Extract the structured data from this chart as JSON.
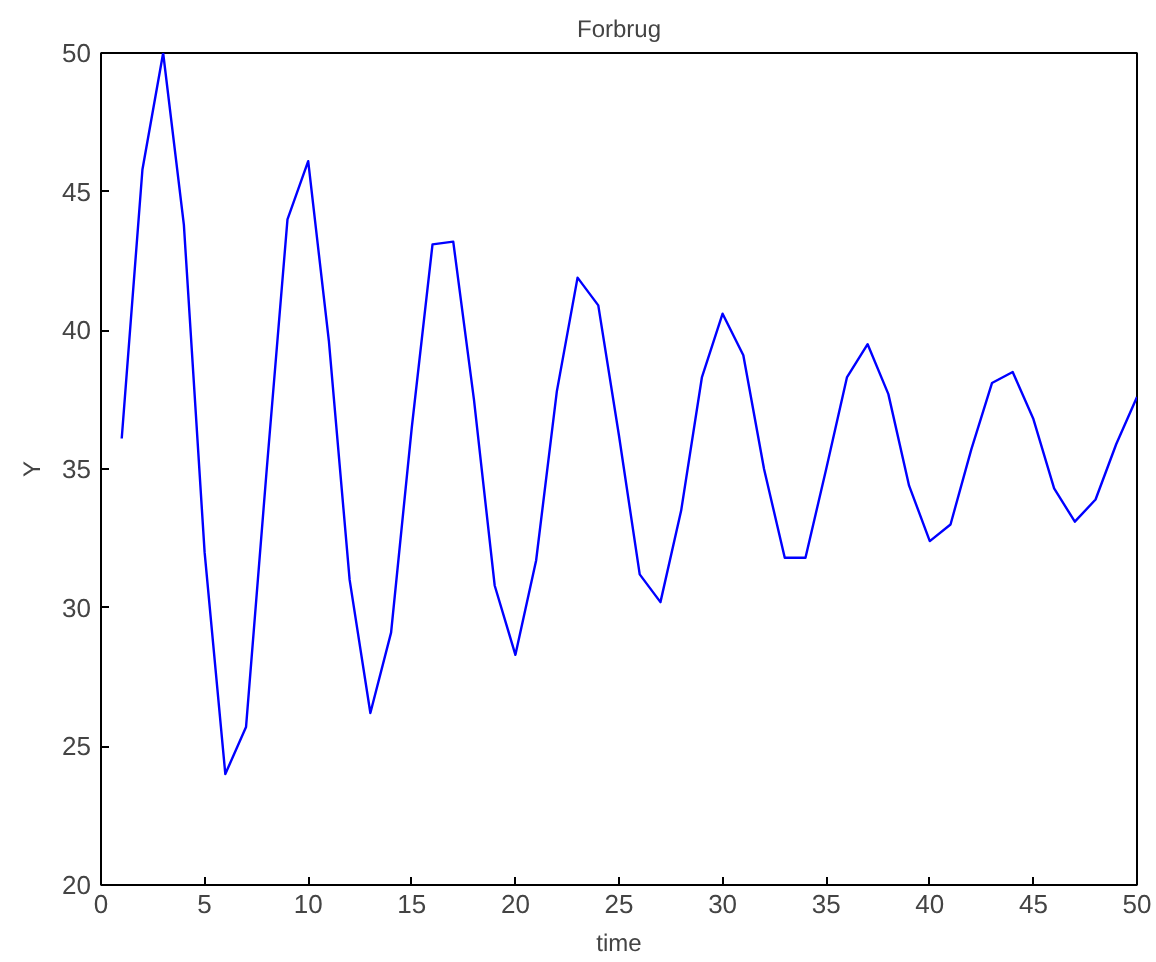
{
  "chart_data": {
    "type": "line",
    "title": "Forbrug",
    "xlabel": "time",
    "ylabel": "Y",
    "x": [
      1,
      2,
      3,
      4,
      5,
      6,
      7,
      8,
      9,
      10,
      11,
      12,
      13,
      14,
      15,
      16,
      17,
      18,
      19,
      20,
      21,
      22,
      23,
      24,
      25,
      26,
      27,
      28,
      29,
      30,
      31,
      32,
      33,
      34,
      35,
      36,
      37,
      38,
      39,
      40,
      41,
      42,
      43,
      44,
      45,
      46,
      47,
      48,
      49,
      50
    ],
    "series": [
      {
        "color": "#0000ff",
        "values": [
          36.1,
          45.8,
          50.0,
          43.8,
          32.0,
          24.0,
          25.7,
          35.0,
          44.0,
          46.1,
          39.6,
          31.0,
          26.2,
          29.1,
          36.5,
          43.1,
          43.2,
          37.5,
          30.8,
          28.3,
          31.7,
          37.8,
          41.9,
          40.9,
          36.2,
          31.2,
          30.2,
          33.5,
          38.3,
          40.6,
          39.1,
          35.0,
          31.8,
          31.8,
          35.0,
          38.3,
          39.5,
          37.7,
          34.4,
          32.4,
          33.0,
          35.7,
          38.1,
          38.5,
          36.8,
          34.3,
          33.1,
          33.9,
          35.9,
          37.6
        ]
      }
    ],
    "xlim": [
      0,
      50
    ],
    "ylim": [
      20,
      50
    ],
    "xticks": [
      0,
      5,
      10,
      15,
      20,
      25,
      30,
      35,
      40,
      45,
      50
    ],
    "yticks": [
      20,
      25,
      30,
      35,
      40,
      45,
      50
    ],
    "grid": false,
    "marker": "none",
    "line_style": "solid"
  }
}
